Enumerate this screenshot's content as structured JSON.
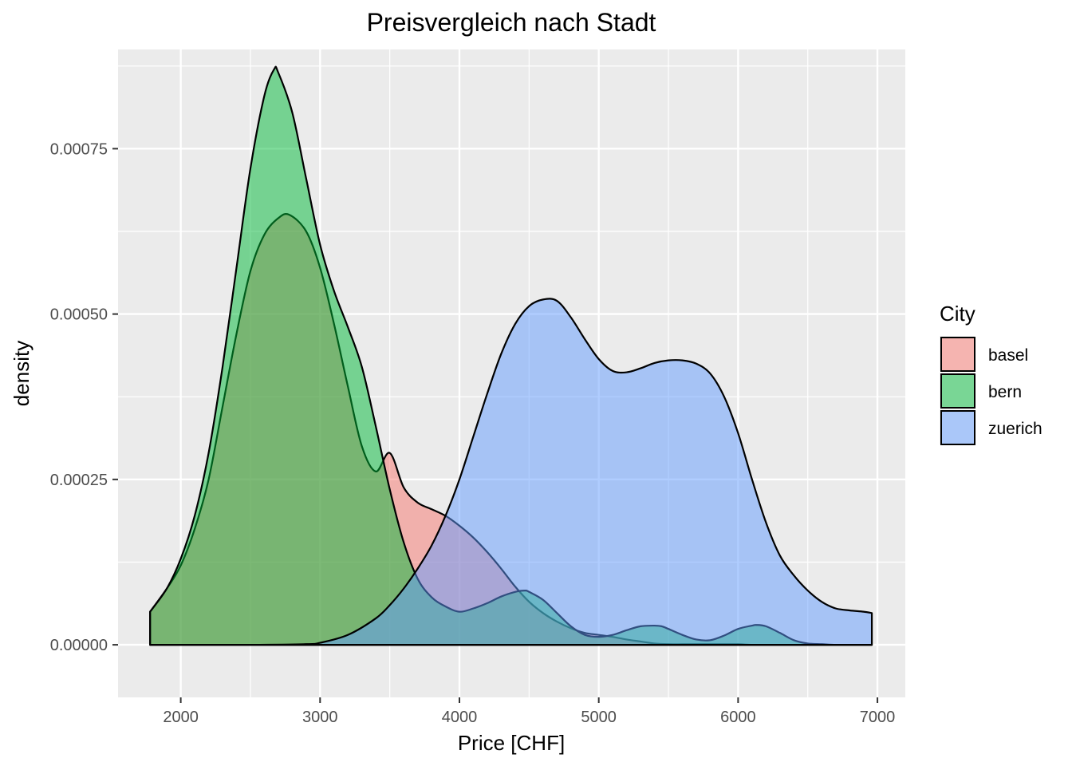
{
  "chart_data": {
    "type": "area",
    "subtype": "density",
    "title": "Preisvergleich nach Stadt",
    "xlabel": "Price [CHF]",
    "ylabel": "density",
    "xlim": [
      1550,
      7200
    ],
    "ylim": [
      -7.95e-05,
      0.0009
    ],
    "x_ticks": [
      2000,
      3000,
      4000,
      5000,
      6000,
      7000
    ],
    "x_tick_labels": [
      "2000",
      "3000",
      "4000",
      "5000",
      "6000",
      "7000"
    ],
    "y_ticks": [
      0,
      0.00025,
      0.0005,
      0.00075
    ],
    "y_tick_labels": [
      "0.00000",
      "0.00025",
      "0.00050",
      "0.00075"
    ],
    "grid": true,
    "legend": {
      "title": "City",
      "position": "right"
    },
    "series": [
      {
        "name": "basel",
        "color": "#F8766D",
        "x": [
          1780,
          1900,
          2000,
          2100,
          2200,
          2300,
          2400,
          2500,
          2600,
          2700,
          2780,
          2900,
          3000,
          3100,
          3200,
          3300,
          3400,
          3500,
          3600,
          3700,
          3800,
          3900,
          4000,
          4100,
          4200,
          4300,
          4400,
          4500,
          4600,
          4700,
          4800,
          4900,
          5000,
          5100,
          5200,
          5300,
          5400,
          5500,
          5600,
          5700,
          5800,
          5900,
          6000,
          6100,
          6200,
          6300,
          6400,
          6500,
          6600,
          6700,
          6800,
          6960
        ],
        "y": [
          5e-05,
          8.5e-05,
          0.00012,
          0.000175,
          0.00025,
          0.00036,
          0.00047,
          0.000565,
          0.00062,
          0.000645,
          0.00065,
          0.000625,
          0.00057,
          0.000485,
          0.00039,
          0.0003,
          0.000262,
          0.00029,
          0.000238,
          0.000215,
          0.000205,
          0.000195,
          0.00018,
          0.000162,
          0.00014,
          0.000115,
          8.8e-05,
          6.5e-05,
          4.8e-05,
          3.5e-05,
          2.5e-05,
          1.8e-05,
          1.5e-05,
          1.2e-05,
          8e-06,
          5e-06,
          2e-06,
          1e-06,
          1e-06,
          1e-06,
          1e-06,
          1e-06,
          1e-06,
          0,
          0,
          0,
          0,
          0,
          0,
          0,
          0,
          0
        ]
      },
      {
        "name": "bern",
        "color": "#00BA38",
        "x": [
          1780,
          1900,
          2000,
          2100,
          2200,
          2300,
          2400,
          2500,
          2600,
          2670,
          2700,
          2800,
          2900,
          3000,
          3100,
          3200,
          3300,
          3400,
          3500,
          3600,
          3700,
          3800,
          3900,
          4000,
          4100,
          4200,
          4300,
          4400,
          4470,
          4500,
          4600,
          4700,
          4800,
          4900,
          5000,
          5100,
          5200,
          5300,
          5400,
          5450,
          5500,
          5600,
          5700,
          5800,
          5900,
          6000,
          6100,
          6130,
          6200,
          6300,
          6400,
          6500,
          6600,
          6700,
          6800,
          6960
        ],
        "y": [
          5e-05,
          8.5e-05,
          0.00013,
          0.000195,
          0.00029,
          0.00042,
          0.00057,
          0.00072,
          0.00083,
          0.00087,
          0.000865,
          0.000805,
          0.000705,
          0.000605,
          0.000535,
          0.00048,
          0.00042,
          0.00033,
          0.000235,
          0.000155,
          0.0001,
          7.2e-05,
          5.8e-05,
          5e-05,
          5.5e-05,
          6.3e-05,
          7.3e-05,
          8e-05,
          8.2e-05,
          8e-05,
          6.8e-05,
          4.8e-05,
          2.8e-05,
          1.5e-05,
          1.2e-05,
          1.5e-05,
          2.2e-05,
          2.8e-05,
          2.9e-05,
          2.8e-05,
          2.4e-05,
          1.5e-05,
          8e-06,
          7e-06,
          1.4e-05,
          2.4e-05,
          2.9e-05,
          3e-05,
          2.8e-05,
          1.8e-05,
          7e-06,
          2e-06,
          1e-06,
          0,
          0,
          0
        ]
      },
      {
        "name": "zuerich",
        "color": "#619CFF",
        "x": [
          1780,
          2000,
          2500,
          2900,
          3000,
          3200,
          3400,
          3500,
          3600,
          3700,
          3800,
          3900,
          4000,
          4100,
          4200,
          4300,
          4400,
          4500,
          4600,
          4700,
          4800,
          4900,
          5000,
          5100,
          5200,
          5300,
          5400,
          5500,
          5600,
          5700,
          5800,
          5900,
          6000,
          6100,
          6200,
          6300,
          6400,
          6500,
          6600,
          6700,
          6800,
          6900,
          6960
        ],
        "y": [
          0,
          0,
          0,
          1e-06,
          3e-06,
          1.5e-05,
          4e-05,
          6e-05,
          8.5e-05,
          0.000115,
          0.00015,
          0.000195,
          0.00025,
          0.000315,
          0.00038,
          0.00044,
          0.000485,
          0.000512,
          0.000522,
          0.00052,
          0.000495,
          0.000462,
          0.000432,
          0.000414,
          0.000412,
          0.000418,
          0.000426,
          0.00043,
          0.00043,
          0.000425,
          0.00041,
          0.000375,
          0.00032,
          0.00025,
          0.000185,
          0.000135,
          0.000105,
          8.2e-05,
          6.5e-05,
          5.5e-05,
          5.2e-05,
          5e-05,
          4.8e-05
        ]
      }
    ]
  }
}
